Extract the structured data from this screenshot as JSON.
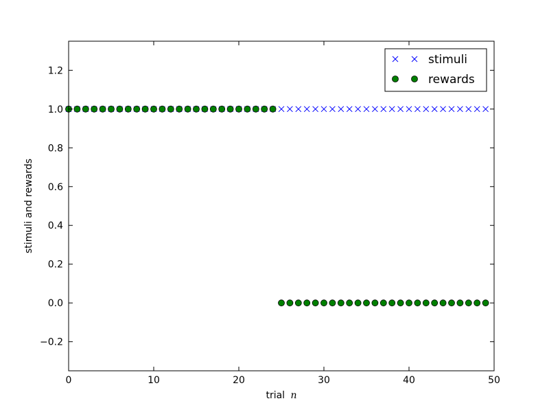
{
  "chart_data": {
    "type": "scatter",
    "xlabel": "trial",
    "xlabel_math": "n",
    "ylabel": "stimuli and rewards",
    "xlim": [
      0,
      50
    ],
    "ylim": [
      -0.35,
      1.35
    ],
    "xticks": [
      0,
      10,
      20,
      30,
      40,
      50
    ],
    "yticks": [
      -0.2,
      0.0,
      0.2,
      0.4,
      0.6,
      0.8,
      1.0,
      1.2
    ],
    "xtick_labels": [
      "0",
      "10",
      "20",
      "30",
      "40",
      "50"
    ],
    "ytick_labels": [
      "−0.2",
      "0.0",
      "0.2",
      "0.4",
      "0.6",
      "0.8",
      "1.0",
      "1.2"
    ],
    "grid": false,
    "legend_position": "top-right",
    "x": [
      0,
      1,
      2,
      3,
      4,
      5,
      6,
      7,
      8,
      9,
      10,
      11,
      12,
      13,
      14,
      15,
      16,
      17,
      18,
      19,
      20,
      21,
      22,
      23,
      24,
      25,
      26,
      27,
      28,
      29,
      30,
      31,
      32,
      33,
      34,
      35,
      36,
      37,
      38,
      39,
      40,
      41,
      42,
      43,
      44,
      45,
      46,
      47,
      48,
      49
    ],
    "series": [
      {
        "name": "stimuli",
        "marker": "x",
        "color": "#0000ff",
        "values": [
          1,
          1,
          1,
          1,
          1,
          1,
          1,
          1,
          1,
          1,
          1,
          1,
          1,
          1,
          1,
          1,
          1,
          1,
          1,
          1,
          1,
          1,
          1,
          1,
          1,
          1,
          1,
          1,
          1,
          1,
          1,
          1,
          1,
          1,
          1,
          1,
          1,
          1,
          1,
          1,
          1,
          1,
          1,
          1,
          1,
          1,
          1,
          1,
          1,
          1
        ]
      },
      {
        "name": "rewards",
        "marker": "o",
        "color": "#008000",
        "values": [
          1,
          1,
          1,
          1,
          1,
          1,
          1,
          1,
          1,
          1,
          1,
          1,
          1,
          1,
          1,
          1,
          1,
          1,
          1,
          1,
          1,
          1,
          1,
          1,
          1,
          0,
          0,
          0,
          0,
          0,
          0,
          0,
          0,
          0,
          0,
          0,
          0,
          0,
          0,
          0,
          0,
          0,
          0,
          0,
          0,
          0,
          0,
          0,
          0,
          0
        ]
      }
    ]
  }
}
